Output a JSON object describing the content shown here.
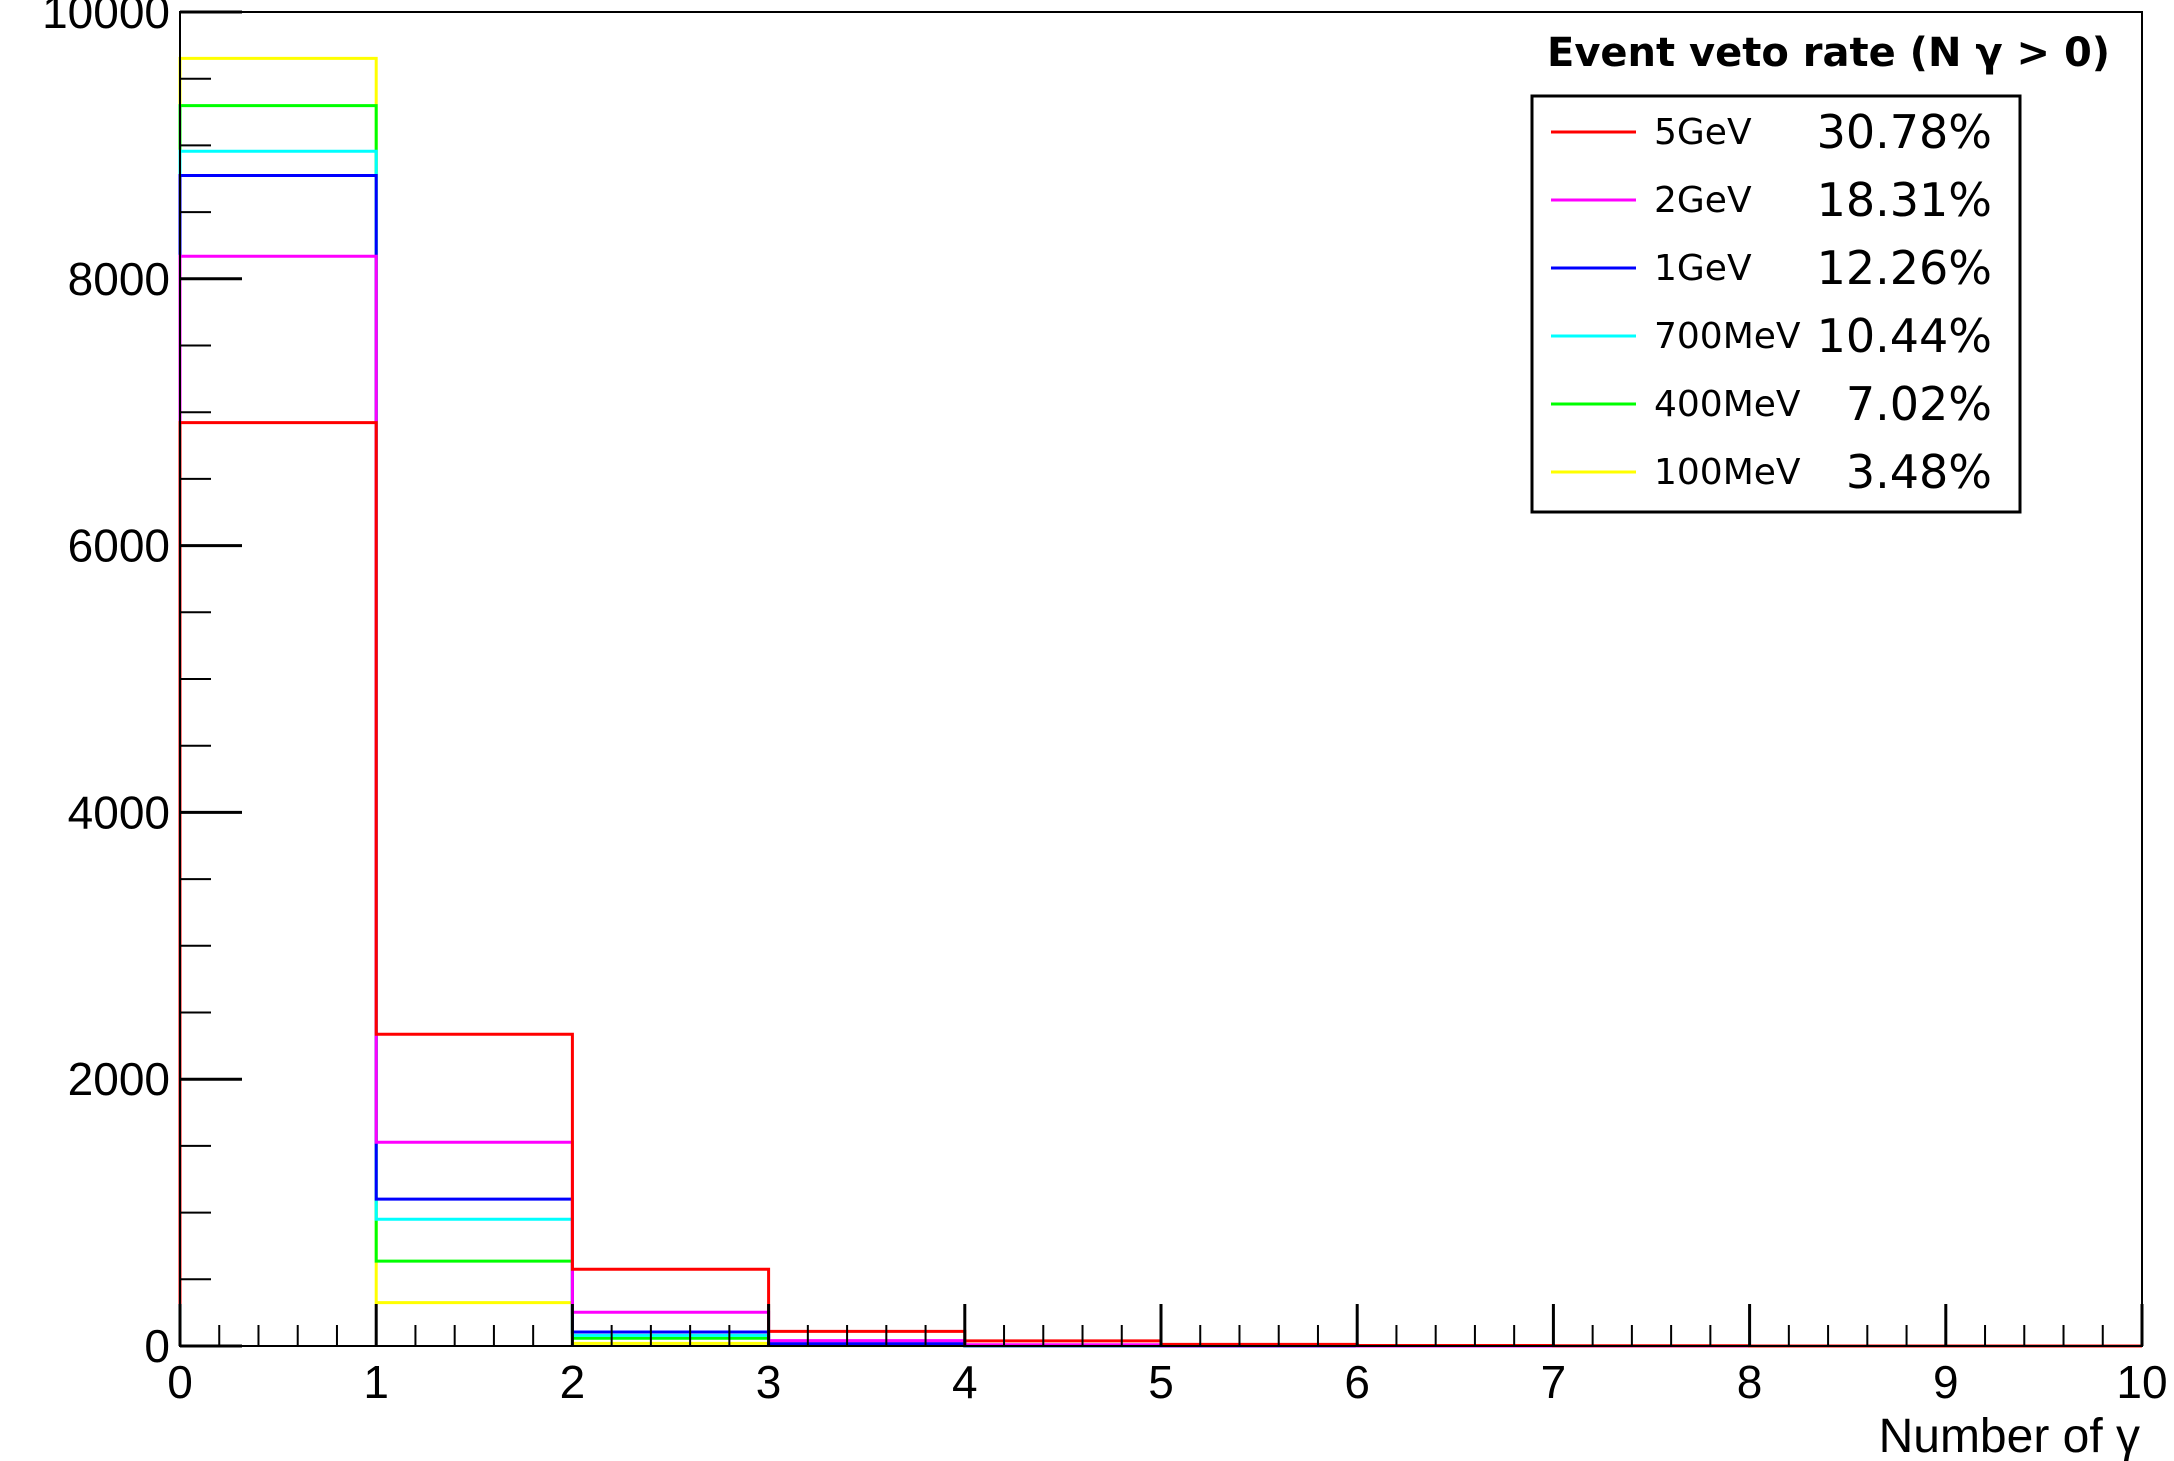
{
  "chart_data": {
    "type": "histogram",
    "xlabel": "Number of γ",
    "ylabel": "",
    "xlim": [
      0,
      10
    ],
    "ylim": [
      0,
      10000
    ],
    "bin_edges": [
      0,
      1,
      2,
      3,
      4,
      5,
      6,
      7,
      8,
      9,
      10
    ],
    "x_ticks": [
      "0",
      "1",
      "2",
      "3",
      "4",
      "5",
      "6",
      "7",
      "8",
      "9",
      "10"
    ],
    "y_ticks": [
      "0",
      "2000",
      "4000",
      "6000",
      "8000",
      "10000"
    ],
    "legend_title": "Event veto rate (N γ > 0)",
    "legend_position": "top-right",
    "series": [
      {
        "name": "5GeV",
        "rate": "30.78%",
        "color": "#ff0000",
        "values": [
          6922,
          2337,
          575,
          110,
          38,
          12,
          4,
          2,
          0,
          0
        ]
      },
      {
        "name": "2GeV",
        "rate": "18.31%",
        "color": "#ff00ff",
        "values": [
          8169,
          1527,
          253,
          40,
          9,
          2,
          0,
          0,
          0,
          0
        ]
      },
      {
        "name": "1GeV",
        "rate": "12.26%",
        "color": "#0000ff",
        "values": [
          8774,
          1101,
          105,
          18,
          2,
          0,
          0,
          0,
          0,
          0
        ]
      },
      {
        "name": "700MeV",
        "rate": "10.44%",
        "color": "#00ffff",
        "values": [
          8956,
          950,
          80,
          12,
          2,
          0,
          0,
          0,
          0,
          0
        ]
      },
      {
        "name": "400MeV",
        "rate": "7.02%",
        "color": "#00ff00",
        "values": [
          9298,
          636,
          58,
          7,
          1,
          0,
          0,
          0,
          0,
          0
        ]
      },
      {
        "name": "100MeV",
        "rate": "3.48%",
        "color": "#ffff00",
        "values": [
          9652,
          325,
          20,
          3,
          0,
          0,
          0,
          0,
          0,
          0
        ]
      }
    ]
  }
}
